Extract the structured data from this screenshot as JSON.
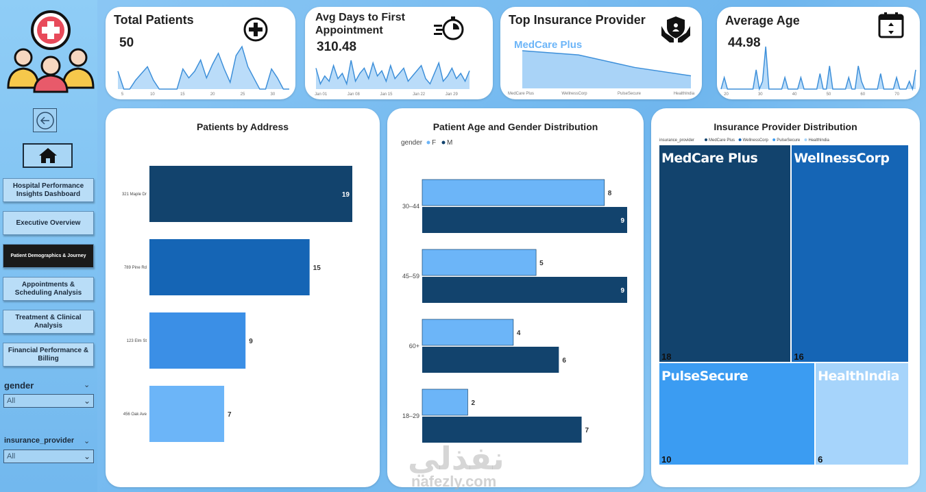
{
  "sidebar": {
    "nav": [
      {
        "label": "Hospital Performance Insights Dashboard",
        "active": false
      },
      {
        "label": "Executive Overview",
        "active": false
      },
      {
        "label": "Patient Demographics & Journey",
        "active": true
      },
      {
        "label": "Appointments & Scheduling Analysis",
        "active": false
      },
      {
        "label": "Treatment & Clinical Analysis",
        "active": false
      },
      {
        "label": "Financial Performance & Billing",
        "active": false
      }
    ],
    "slicers": {
      "gender": {
        "label": "gender",
        "value": "All"
      },
      "insurance": {
        "label": "insurance_provider",
        "value": "All"
      }
    }
  },
  "kpis": {
    "total_patients": {
      "title": "Total Patients",
      "value": "50",
      "spark": [
        8,
        0,
        0,
        4,
        7,
        10,
        4,
        0,
        0,
        0,
        0,
        9,
        5,
        8,
        13,
        5,
        11,
        16,
        9,
        3,
        15,
        19,
        10,
        5,
        0,
        0,
        9,
        5,
        0,
        0
      ],
      "ticks": [
        "5",
        "10",
        "15",
        "20",
        "25",
        "30"
      ]
    },
    "avg_days": {
      "title": "Avg Days to First Appointment",
      "value": "310.48",
      "spark": [
        8,
        2,
        5,
        3,
        9,
        4,
        6,
        2,
        11,
        3,
        6,
        8,
        4,
        10,
        5,
        7,
        3,
        9,
        4,
        6,
        8,
        3,
        5,
        7,
        9,
        4,
        2,
        6,
        10,
        3,
        5,
        8,
        4,
        6,
        3,
        7
      ],
      "ticks": [
        "Jan 01",
        "Jan 08",
        "Jan 15",
        "Jan 22",
        "Jan 29"
      ]
    },
    "top_insurance": {
      "title": "Top Insurance Provider",
      "value": "MedCare Plus",
      "series": [
        18,
        16,
        10,
        6
      ],
      "ticks": [
        "MedCare Plus",
        "WellnessCorp",
        "PulseSecure",
        "HealthIndia"
      ]
    },
    "average_age": {
      "title": "Average Age",
      "value": "44.98",
      "spark": [
        0,
        3,
        0,
        0,
        0,
        0,
        0,
        0,
        0,
        0,
        0,
        5,
        0,
        2,
        11,
        0,
        0,
        0,
        0,
        0,
        3,
        0,
        0,
        0,
        0,
        3,
        0,
        0,
        0,
        0,
        0,
        4,
        0,
        0,
        6,
        0,
        0,
        0,
        0,
        0,
        3,
        0,
        0,
        6,
        2,
        0,
        0,
        0,
        0,
        0,
        4,
        0,
        0,
        0,
        0,
        3,
        0,
        0,
        0,
        2,
        0,
        5
      ],
      "ticks": [
        "20",
        "30",
        "40",
        "50",
        "60",
        "70"
      ]
    }
  },
  "chart_data": [
    {
      "type": "bar",
      "title": "Patients by Address",
      "categories": [
        "321 Maple Dr",
        "789 Pine Rd",
        "123 Elm St",
        "456 Oak Ave"
      ],
      "values": [
        19,
        15,
        9,
        7
      ],
      "colors": [
        "#12436d",
        "#1565b5",
        "#3b8fe6",
        "#6cb5f8"
      ]
    },
    {
      "type": "bar",
      "title": "Patient Age and Gender Distribution",
      "legend_title": "gender",
      "categories": [
        "30–44",
        "45–59",
        "60+",
        "18–29"
      ],
      "series": [
        {
          "name": "F",
          "values": [
            8,
            5,
            4,
            2
          ],
          "color": "#6cb5f8"
        },
        {
          "name": "M",
          "values": [
            9,
            9,
            6,
            7
          ],
          "color": "#12436d"
        }
      ]
    },
    {
      "type": "treemap",
      "title": "Insurance Provider Distribution",
      "legend_title": "insurance_provider",
      "items": [
        {
          "name": "MedCare Plus",
          "value": 18,
          "color": "#12436d"
        },
        {
          "name": "WellnessCorp",
          "value": 16,
          "color": "#1565b5"
        },
        {
          "name": "PulseSecure",
          "value": 10,
          "color": "#3b9cf2"
        },
        {
          "name": "HealthIndia",
          "value": 6,
          "color": "#a6d4fb"
        }
      ]
    }
  ],
  "watermark": {
    "arabic": "نفذلي",
    "latin": "nafezly.com"
  }
}
